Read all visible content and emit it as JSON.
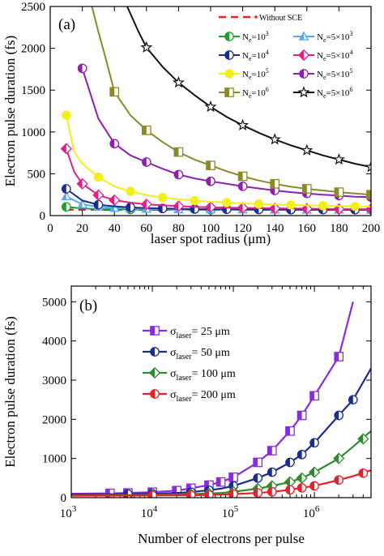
{
  "chart_data": [
    {
      "panel_label": "(a)",
      "type": "line",
      "xlabel": "laser spot radius (μm)",
      "ylabel": "Electron pulse duration (fs)",
      "xlim": [
        0,
        200
      ],
      "ylim": [
        0,
        2500
      ],
      "xticks": [
        0,
        20,
        40,
        60,
        80,
        100,
        120,
        140,
        160,
        180,
        200
      ],
      "yticks": [
        0,
        500,
        1000,
        1500,
        2000,
        2500
      ],
      "legend_position": "top-right",
      "series": [
        {
          "name": "Without SCE",
          "color": "#e8202a",
          "marker": "star",
          "dashed": true,
          "x": [
            10,
            200
          ],
          "y": [
            70,
            70
          ],
          "points": []
        },
        {
          "name": "Ne=10^3",
          "color": "#1f9e30",
          "marker": "circle-half",
          "x": [
            10,
            20,
            30,
            40,
            50,
            60,
            70,
            80,
            90,
            100,
            110,
            120,
            130,
            140,
            150,
            160,
            170,
            180,
            190,
            200
          ],
          "y": [
            105,
            85,
            78,
            75,
            73,
            72,
            71,
            71,
            70,
            70,
            70,
            70,
            70,
            70,
            70,
            70,
            70,
            70,
            70,
            70
          ],
          "points": [
            10,
            50,
            100,
            150,
            200
          ]
        },
        {
          "name": "Ne=5×10^3",
          "color": "#5aa9ef",
          "marker": "triangle",
          "x": [
            10,
            20,
            30,
            40,
            50,
            60,
            70,
            80,
            90,
            100,
            110,
            120,
            130,
            140,
            150,
            160,
            170,
            180,
            190,
            200
          ],
          "y": [
            230,
            135,
            105,
            92,
            85,
            80,
            77,
            75,
            74,
            73,
            72,
            72,
            71,
            71,
            71,
            70,
            70,
            70,
            70,
            70
          ],
          "points": [
            10,
            20,
            30,
            40,
            50,
            60,
            80,
            100,
            120,
            140,
            160,
            180,
            200
          ]
        },
        {
          "name": "Ne=10^4",
          "color": "#1a2e8f",
          "marker": "circle-half",
          "x": [
            10,
            20,
            30,
            40,
            50,
            60,
            70,
            80,
            90,
            100,
            110,
            120,
            130,
            140,
            150,
            160,
            170,
            180,
            190,
            200
          ],
          "y": [
            320,
            180,
            130,
            110,
            98,
            90,
            85,
            81,
            78,
            76,
            75,
            74,
            73,
            72,
            72,
            71,
            71,
            70,
            70,
            70
          ],
          "points": [
            10,
            30,
            50,
            70,
            90,
            110,
            130,
            150,
            170,
            190
          ]
        },
        {
          "name": "Ne=5×10^4",
          "color": "#e0208a",
          "marker": "diamond",
          "x": [
            10,
            15,
            20,
            30,
            40,
            50,
            60,
            70,
            80,
            90,
            100,
            110,
            120,
            130,
            140,
            150,
            160,
            170,
            180,
            190,
            200
          ],
          "y": [
            800,
            520,
            380,
            245,
            185,
            155,
            135,
            122,
            113,
            105,
            100,
            96,
            92,
            89,
            86,
            84,
            82,
            80,
            78,
            77,
            76
          ],
          "points": [
            10,
            20,
            30,
            40,
            60,
            80,
            100,
            120,
            140,
            160,
            180,
            200
          ]
        },
        {
          "name": "Ne=10^5",
          "color": "#f2ef1a",
          "marker": "circle",
          "x": [
            10,
            15,
            20,
            30,
            40,
            50,
            60,
            70,
            80,
            90,
            100,
            110,
            120,
            130,
            140,
            150,
            160,
            170,
            180,
            190,
            200
          ],
          "y": [
            1200,
            760,
            620,
            460,
            350,
            290,
            245,
            215,
            195,
            180,
            165,
            155,
            145,
            138,
            132,
            127,
            122,
            118,
            114,
            110,
            107
          ],
          "points": [
            10,
            30,
            50,
            70,
            90,
            110,
            130,
            150,
            170,
            190
          ]
        },
        {
          "name": "Ne=5×10^5",
          "color": "#8e20b0",
          "marker": "circle-half",
          "x": [
            20,
            30,
            40,
            50,
            60,
            70,
            80,
            90,
            100,
            110,
            120,
            130,
            140,
            150,
            160,
            170,
            180,
            190,
            200
          ],
          "y": [
            1760,
            1160,
            860,
            720,
            640,
            560,
            490,
            445,
            410,
            380,
            350,
            325,
            300,
            280,
            265,
            250,
            240,
            225,
            220
          ],
          "points": [
            20,
            40,
            60,
            80,
            100,
            120,
            140,
            160,
            180,
            200
          ]
        },
        {
          "name": "Ne=10^6",
          "color": "#8a8a2a",
          "marker": "square",
          "x": [
            26,
            30,
            35,
            40,
            50,
            60,
            70,
            80,
            90,
            100,
            110,
            120,
            130,
            140,
            150,
            160,
            170,
            180,
            190,
            200
          ],
          "y": [
            2500,
            2200,
            1850,
            1480,
            1200,
            1020,
            880,
            760,
            670,
            600,
            530,
            470,
            420,
            380,
            345,
            320,
            300,
            280,
            265,
            250
          ],
          "points": [
            40,
            60,
            80,
            100,
            120,
            140,
            160,
            180,
            200
          ]
        },
        {
          "name": "Ne=5×10^6",
          "color": "#111111",
          "marker": "star",
          "x": [
            48,
            55,
            60,
            70,
            80,
            90,
            100,
            110,
            120,
            130,
            140,
            150,
            160,
            170,
            180,
            190,
            200
          ],
          "y": [
            2500,
            2200,
            2010,
            1780,
            1590,
            1440,
            1300,
            1180,
            1080,
            990,
            910,
            840,
            780,
            720,
            670,
            620,
            580
          ],
          "points": [
            60,
            80,
            100,
            120,
            140,
            160,
            180,
            200
          ]
        }
      ]
    },
    {
      "panel_label": "(b)",
      "type": "line",
      "xlabel": "Number of electrons per pulse",
      "ylabel": "Electron pulse duration (fs)",
      "x_scale": "log",
      "xlim": [
        1000,
        5000000
      ],
      "ylim": [
        0,
        5400
      ],
      "xticks": [
        1000,
        10000,
        100000,
        1000000
      ],
      "xtick_exponents": [
        "3",
        "4",
        "5",
        "6"
      ],
      "yticks": [
        0,
        1000,
        2000,
        3000,
        4000,
        5000
      ],
      "legend_position": "top-left",
      "series": [
        {
          "name_prefix": "σ",
          "name_sub": "laser",
          "name_rest": "= 25 μm",
          "color": "#8a2be2",
          "marker": "square",
          "x": [
            1000,
            3000,
            5000,
            10000,
            20000,
            30000,
            50000,
            70000,
            100000,
            200000,
            300000,
            500000,
            700000,
            1000000,
            2000000,
            3000000
          ],
          "y": [
            100,
            110,
            120,
            140,
            180,
            240,
            320,
            400,
            520,
            900,
            1200,
            1700,
            2100,
            2600,
            3600,
            5000
          ],
          "points": [
            3000,
            5000,
            10000,
            20000,
            30000,
            50000,
            70000,
            100000,
            200000,
            300000,
            500000,
            700000,
            1000000,
            2000000
          ]
        },
        {
          "name_prefix": "σ",
          "name_sub": "laser",
          "name_rest": "= 50 μm",
          "color": "#1a2e8f",
          "marker": "circle-half",
          "x": [
            1000,
            3000,
            5000,
            10000,
            20000,
            30000,
            50000,
            70000,
            100000,
            200000,
            300000,
            500000,
            700000,
            1000000,
            2000000,
            3000000,
            5000000
          ],
          "y": [
            80,
            85,
            90,
            100,
            120,
            140,
            190,
            230,
            300,
            500,
            650,
            900,
            1100,
            1400,
            2100,
            2500,
            3300
          ],
          "points": [
            5000,
            10000,
            30000,
            50000,
            100000,
            200000,
            300000,
            500000,
            700000,
            1000000,
            2000000,
            3000000
          ]
        },
        {
          "name_prefix": "σ",
          "name_sub": "laser",
          "name_rest": "= 100 μm",
          "color": "#2e8b2e",
          "marker": "diamond",
          "x": [
            1000,
            3000,
            5000,
            10000,
            20000,
            30000,
            50000,
            70000,
            100000,
            200000,
            300000,
            500000,
            700000,
            1000000,
            2000000,
            3000000,
            5000000
          ],
          "y": [
            60,
            62,
            65,
            70,
            80,
            90,
            105,
            120,
            150,
            230,
            300,
            400,
            500,
            650,
            1000,
            1300,
            1700
          ],
          "points": [
            10000,
            30000,
            50000,
            100000,
            200000,
            300000,
            500000,
            700000,
            1000000,
            2000000,
            4000000
          ]
        },
        {
          "name_prefix": "σ",
          "name_sub": "laser",
          "name_rest": "= 200 μm",
          "color": "#e8202a",
          "marker": "circle-half",
          "x": [
            1000,
            3000,
            5000,
            10000,
            20000,
            30000,
            50000,
            70000,
            100000,
            200000,
            300000,
            500000,
            700000,
            1000000,
            2000000,
            3000000,
            5000000
          ],
          "y": [
            50,
            51,
            52,
            55,
            58,
            62,
            70,
            78,
            90,
            120,
            150,
            200,
            250,
            300,
            450,
            550,
            700
          ],
          "points": [
            10000,
            30000,
            50000,
            100000,
            200000,
            300000,
            500000,
            700000,
            1000000,
            2000000,
            4000000
          ]
        }
      ]
    }
  ]
}
